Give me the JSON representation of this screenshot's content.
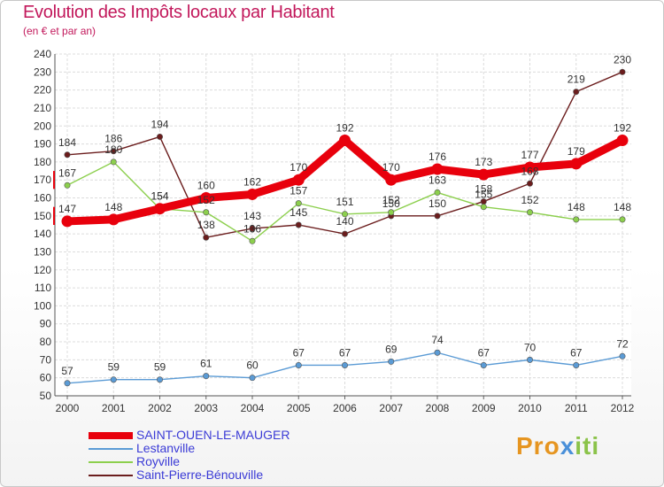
{
  "header": {
    "title": "Evolution des Impôts locaux par Habitant",
    "subtitle": "(en € et par an)"
  },
  "brand": {
    "part1": "Pro",
    "part2": "x",
    "part3": "iti"
  },
  "chart_data": {
    "type": "line",
    "title": "Evolution des Impôts locaux par Habitant",
    "subtitle": "(en € et par an)",
    "xlabel": "",
    "ylabel": "",
    "grid": true,
    "ylim": [
      50,
      240
    ],
    "yticks": [
      50,
      60,
      70,
      80,
      90,
      100,
      110,
      120,
      130,
      140,
      150,
      160,
      170,
      180,
      190,
      200,
      210,
      220,
      230,
      240
    ],
    "x": [
      "2000",
      "2001",
      "2002",
      "2003",
      "2004",
      "2005",
      "2006",
      "2007",
      "2008",
      "2009",
      "2010",
      "2011",
      "2012"
    ],
    "legend_position": "bottom-left",
    "series": [
      {
        "name": "Saint-Pierre-Bénouville",
        "color": "#6b1d1d",
        "values": [
          184,
          186,
          194,
          138,
          143,
          145,
          140,
          150,
          150,
          158,
          168,
          219,
          230
        ],
        "labels": [
          "184",
          "186",
          "194",
          "138",
          "143",
          "145",
          "140",
          "150",
          "150",
          "158",
          "168",
          "219",
          "230"
        ]
      },
      {
        "name": "Royville",
        "color": "#8ccf4d",
        "values": [
          167,
          180,
          154,
          152,
          136,
          157,
          151,
          152,
          163,
          155,
          152,
          148,
          148
        ],
        "labels": [
          "167",
          "180",
          "154",
          "152",
          "136",
          "157",
          "151",
          "152",
          "163",
          "155",
          "152",
          "148",
          "148"
        ]
      },
      {
        "name": "Lestanville",
        "color": "#5b9bd5",
        "values": [
          57,
          59,
          59,
          61,
          60,
          67,
          67,
          69,
          74,
          67,
          70,
          67,
          72
        ],
        "labels": [
          "57",
          "59",
          "59",
          "61",
          "60",
          "67",
          "67",
          "69",
          "74",
          "67",
          "70",
          "67",
          "72"
        ]
      },
      {
        "name": "SAINT-OUEN-LE-MAUGER",
        "color": "#e8000c",
        "values": [
          147,
          148,
          154,
          160,
          162,
          170,
          192,
          170,
          176,
          173,
          177,
          179,
          192
        ],
        "labels": [
          "147",
          "148",
          "154",
          "160",
          "162",
          "170",
          "192",
          "170",
          "176",
          "173",
          "177",
          "179",
          "192"
        ]
      }
    ]
  }
}
